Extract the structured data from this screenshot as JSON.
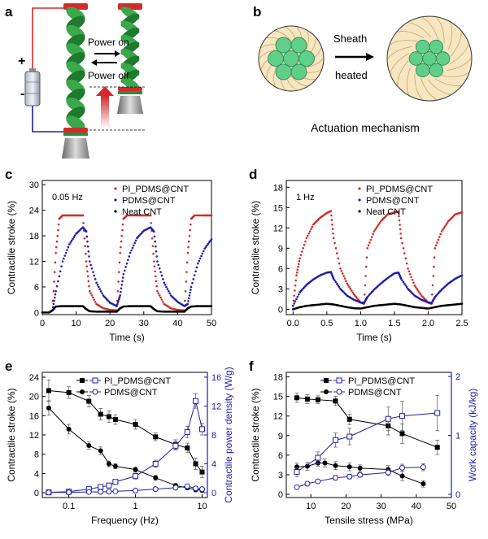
{
  "panels": {
    "a": {
      "letter": "a",
      "power_on": "Power on",
      "power_off": "Power off",
      "plus": "+",
      "minus": "-"
    },
    "b": {
      "letter": "b",
      "arrow_top": "Sheath",
      "arrow_bottom": "heated",
      "caption": "Actuation mechanism"
    },
    "c": {
      "letter": "c"
    },
    "d": {
      "letter": "d"
    },
    "e": {
      "letter": "e"
    },
    "f": {
      "letter": "f"
    }
  },
  "colors": {
    "red": "#d42a2a",
    "blue": "#1f1faa",
    "black": "#000000",
    "green": "#2e8b3a",
    "gray": "#999999"
  },
  "chart_data": [
    {
      "id": "c",
      "type": "scatter",
      "annotation": "0.05 Hz",
      "xlabel": "Time (s)",
      "ylabel": "Contractile stroke (%)",
      "xlim": [
        0,
        50
      ],
      "ylim": [
        -0.5,
        31
      ],
      "xticks": [
        0,
        10,
        20,
        30,
        40,
        50
      ],
      "yticks": [
        0,
        6,
        12,
        18,
        24,
        30
      ],
      "legend": [
        "PI_PDMS@CNT",
        "PDMS@CNT",
        "Neat CNT"
      ],
      "series": [
        {
          "name": "PI_PDMS@CNT",
          "color": "#d42a2a",
          "x": [
            3,
            4,
            5,
            6,
            8,
            10,
            12,
            13,
            14,
            16,
            18,
            20,
            22,
            23,
            24,
            25,
            28,
            30,
            32,
            33,
            34,
            36,
            38,
            40,
            42,
            43,
            44,
            45,
            48,
            50
          ],
          "y": [
            0.5,
            14,
            22,
            22.8,
            22.8,
            22.8,
            22.8,
            12,
            5,
            2,
            1,
            0.6,
            0.5,
            14,
            22,
            22.8,
            22.8,
            22.8,
            22.8,
            12,
            5,
            2,
            1,
            0.6,
            0.5,
            14,
            22,
            22.8,
            22.8,
            22.8
          ]
        },
        {
          "name": "PDMS@CNT",
          "color": "#1f1faa",
          "x": [
            3,
            4,
            6,
            8,
            10,
            12,
            13,
            14,
            16,
            18,
            20,
            22,
            23,
            24,
            26,
            28,
            30,
            32,
            33,
            34,
            36,
            38,
            40,
            42,
            43,
            44,
            46,
            48,
            50
          ],
          "y": [
            0.5,
            5,
            12,
            16,
            18.5,
            20,
            19,
            12,
            7,
            4,
            2.3,
            1.5,
            4,
            9,
            14,
            17.5,
            19.2,
            20,
            19,
            12,
            7,
            4,
            2.5,
            1.5,
            2,
            6,
            11.5,
            15,
            17.2
          ]
        },
        {
          "name": "Neat CNT",
          "color": "#000000",
          "x": [
            0,
            2,
            3,
            4,
            6,
            8,
            10,
            12,
            13,
            14,
            16,
            18,
            20,
            22,
            23,
            24,
            26,
            28,
            30,
            32,
            33,
            34,
            36,
            38,
            40,
            42,
            43,
            44,
            46,
            48,
            50
          ],
          "y": [
            0,
            0,
            0.5,
            1.4,
            1.5,
            1.5,
            1.5,
            1.5,
            0.8,
            0.3,
            0.2,
            0.2,
            0.2,
            0.2,
            1.0,
            1.4,
            1.5,
            1.5,
            1.5,
            1.5,
            0.8,
            0.3,
            0.2,
            0.2,
            0.2,
            0.2,
            1.0,
            1.4,
            1.5,
            1.5,
            1.5
          ]
        }
      ]
    },
    {
      "id": "d",
      "type": "scatter",
      "annotation": "1 Hz",
      "xlabel": "Time (s)",
      "ylabel": "Contractile stroke (%)",
      "xlim": [
        -0.1,
        2.5
      ],
      "ylim": [
        -0.8,
        19
      ],
      "xticks": [
        0.0,
        0.5,
        1.0,
        1.5,
        2.0,
        2.5
      ],
      "yticks": [
        0,
        3,
        6,
        9,
        12,
        15,
        18
      ],
      "xtick_labels": [
        "0.0",
        "0.5",
        "1.0",
        "1.5",
        "2.0",
        "2.5"
      ],
      "legend": [
        "PI_PDMS@CNT",
        "PDMS@CNT",
        "Neat CNT"
      ],
      "series": [
        {
          "name": "PI_PDMS@CNT",
          "color": "#d42a2a",
          "x": [
            0.0,
            0.05,
            0.1,
            0.2,
            0.3,
            0.4,
            0.5,
            0.56,
            0.6,
            0.7,
            0.8,
            0.9,
            1.0,
            1.05,
            1.1,
            1.2,
            1.3,
            1.4,
            1.5,
            1.56,
            1.6,
            1.7,
            1.8,
            1.9,
            2.0,
            2.05,
            2.1,
            2.2,
            2.3,
            2.4,
            2.5
          ],
          "y": [
            0.5,
            5,
            7.5,
            10.5,
            12.5,
            13.5,
            14.2,
            14.5,
            10.5,
            6,
            3.8,
            2.2,
            1.0,
            0.8,
            9,
            11.5,
            13,
            14,
            14.3,
            14.4,
            10.5,
            6,
            3.5,
            2,
            1.0,
            0.8,
            9,
            11.5,
            13,
            14,
            14.3
          ]
        },
        {
          "name": "PDMS@CNT",
          "color": "#1f1faa",
          "x": [
            0.0,
            0.1,
            0.2,
            0.3,
            0.4,
            0.5,
            0.56,
            0.6,
            0.7,
            0.8,
            0.9,
            1.0,
            1.05,
            1.1,
            1.2,
            1.3,
            1.4,
            1.5,
            1.56,
            1.6,
            1.7,
            1.8,
            1.9,
            2.0,
            2.05,
            2.1,
            2.2,
            2.3,
            2.4,
            2.5
          ],
          "y": [
            0.5,
            2.5,
            3.6,
            4.4,
            5.0,
            5.4,
            5.5,
            4.5,
            3.0,
            2.0,
            1.4,
            1.0,
            0.9,
            1.8,
            2.9,
            3.8,
            4.6,
            5.3,
            5.4,
            4.5,
            3.0,
            2.0,
            1.4,
            1.0,
            0.9,
            1.8,
            2.9,
            3.8,
            4.5,
            5.0
          ]
        },
        {
          "name": "Neat CNT",
          "color": "#000000",
          "x": [
            0.0,
            0.1,
            0.2,
            0.3,
            0.4,
            0.5,
            0.6,
            0.7,
            0.8,
            0.9,
            1.0,
            1.1,
            1.2,
            1.3,
            1.4,
            1.5,
            1.6,
            1.7,
            1.8,
            1.9,
            2.0,
            2.1,
            2.2,
            2.3,
            2.4,
            2.5
          ],
          "y": [
            0.0,
            0.3,
            0.5,
            0.6,
            0.7,
            0.8,
            0.7,
            0.5,
            0.3,
            0.15,
            0.1,
            0.3,
            0.5,
            0.6,
            0.7,
            0.8,
            0.7,
            0.5,
            0.3,
            0.2,
            0.1,
            0.3,
            0.5,
            0.6,
            0.7,
            0.8
          ]
        }
      ]
    },
    {
      "id": "e",
      "type": "line",
      "xlabel": "Frequency (Hz)",
      "ylabel": "Contractile stroke (%)",
      "y2label": "Contractile power density (W/g)",
      "xscale": "log",
      "xlim": [
        0.04,
        12
      ],
      "ylim": [
        -1,
        25
      ],
      "y2lim": [
        -0.667,
        16.667
      ],
      "xticks": [
        0.1,
        1,
        10
      ],
      "xtick_labels": [
        "0.1",
        "1",
        "10"
      ],
      "yticks": [
        0,
        4,
        8,
        12,
        16,
        20,
        24
      ],
      "y2ticks": [
        0,
        4,
        8,
        12,
        16
      ],
      "legend": [
        "PI_PDMS@CNT",
        "PDMS@CNT"
      ],
      "x": [
        0.05,
        0.1,
        0.2,
        0.3,
        0.4,
        0.5,
        1.0,
        2.0,
        4.0,
        6.0,
        8.0,
        10.0
      ],
      "series": [
        {
          "name": "PI_PDMS@CNT",
          "axis": "left",
          "marker": "square-filled",
          "color": "#000000",
          "y": [
            21.2,
            20.8,
            19.0,
            16.3,
            15.8,
            15.2,
            14.2,
            11.6,
            10.0,
            9.3,
            6.0,
            4.3
          ],
          "err": [
            2.2,
            1.2,
            1.2,
            1.2,
            1.2,
            1.0,
            1.0,
            0.8,
            1.0,
            1.0,
            1.2,
            1.2
          ]
        },
        {
          "name": "PDMS@CNT",
          "axis": "left",
          "marker": "circle-filled",
          "color": "#000000",
          "y": [
            17.6,
            13.2,
            9.8,
            8.7,
            6.0,
            5.5,
            4.8,
            3.1,
            1.5,
            1.0,
            0.6,
            0.5
          ],
          "err": [
            1.5,
            1.0,
            0.8,
            0.8,
            0.6,
            0.5,
            0.5,
            0.5,
            0.4,
            0.4,
            0.4,
            0.4
          ]
        },
        {
          "name": "PI_PDMS@CNT",
          "axis": "right",
          "marker": "square-open",
          "color": "#1f1faa",
          "y": [
            0.05,
            0.15,
            0.5,
            0.8,
            1.0,
            1.5,
            2.3,
            4.0,
            6.5,
            8.4,
            12.7,
            8.8
          ],
          "err": [
            0.1,
            0.1,
            0.2,
            0.2,
            0.3,
            0.3,
            0.4,
            0.5,
            0.6,
            0.8,
            1.0,
            0.8
          ]
        },
        {
          "name": "PDMS@CNT",
          "axis": "right",
          "marker": "circle-open",
          "color": "#1f1faa",
          "y": [
            0.03,
            0.05,
            0.1,
            0.12,
            0.15,
            0.2,
            0.3,
            0.5,
            0.7,
            0.9,
            0.6,
            0.5
          ],
          "err": [
            0.05,
            0.05,
            0.05,
            0.05,
            0.05,
            0.05,
            0.1,
            0.1,
            0.1,
            0.1,
            0.1,
            0.1
          ]
        }
      ]
    },
    {
      "id": "f",
      "type": "line",
      "xlabel": "Tensile stress (MPa)",
      "ylabel": "Contractile stroke (%)",
      "y2label": "Work capacity (kJ/kg)",
      "xlim": [
        3,
        50
      ],
      "ylim": [
        -0.5,
        18.7
      ],
      "y2lim": [
        -0.055,
        2.07
      ],
      "xticks": [
        10,
        20,
        30,
        40,
        50
      ],
      "yticks": [
        0,
        3,
        6,
        9,
        12,
        15,
        18
      ],
      "y2ticks": [
        0,
        1,
        2
      ],
      "legend": [
        "PI_PDMS@CNT",
        "PDMS@CNT"
      ],
      "series": [
        {
          "name": "PI_PDMS@CNT",
          "axis": "left",
          "marker": "square-filled",
          "color": "#000000",
          "x": [
            6,
            9,
            12,
            17,
            21,
            32,
            36,
            46
          ],
          "y": [
            14.8,
            14.6,
            14.5,
            14.3,
            11.5,
            10.5,
            9.3,
            7.2
          ],
          "err": [
            0.7,
            0.7,
            0.6,
            0.7,
            0.8,
            1.4,
            1.5,
            1.1
          ]
        },
        {
          "name": "PDMS@CNT",
          "axis": "left",
          "marker": "circle-filled",
          "color": "#000000",
          "x": [
            6,
            9,
            12,
            14,
            17,
            21,
            24,
            32,
            36,
            42
          ],
          "y": [
            4.2,
            4.3,
            4.8,
            4.8,
            4.4,
            4.2,
            4.0,
            3.8,
            2.8,
            1.6
          ],
          "err": [
            0.6,
            0.6,
            0.5,
            0.6,
            0.6,
            0.6,
            0.5,
            0.6,
            0.7,
            0.5
          ]
        },
        {
          "name": "PI_PDMS@CNT",
          "axis": "right",
          "marker": "square-open",
          "color": "#1f1faa",
          "x": [
            6,
            12,
            17,
            21,
            32,
            36,
            46
          ],
          "y": [
            0.38,
            0.62,
            0.92,
            0.98,
            1.28,
            1.33,
            1.38
          ],
          "err": [
            0.08,
            0.1,
            0.12,
            0.14,
            0.2,
            0.25,
            0.3
          ]
        },
        {
          "name": "PDMS@CNT",
          "axis": "right",
          "marker": "circle-open",
          "color": "#1f1faa",
          "x": [
            6,
            9,
            12,
            17,
            21,
            24,
            32,
            36,
            42
          ],
          "y": [
            0.12,
            0.18,
            0.22,
            0.28,
            0.3,
            0.33,
            0.37,
            0.45,
            0.46
          ],
          "err": [
            0.03,
            0.03,
            0.03,
            0.04,
            0.04,
            0.04,
            0.05,
            0.06,
            0.06
          ]
        }
      ]
    }
  ]
}
